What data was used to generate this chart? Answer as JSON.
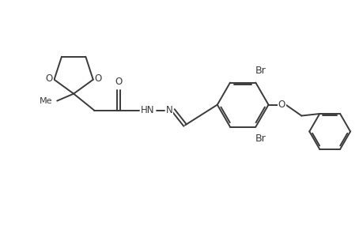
{
  "background_color": "#ffffff",
  "line_color": "#3a3a3a",
  "line_width": 1.4,
  "font_size": 8.5,
  "figsize": [
    4.6,
    3.0
  ],
  "dpi": 100,
  "xlim": [
    0,
    9.2
  ],
  "ylim": [
    0,
    6.0
  ]
}
